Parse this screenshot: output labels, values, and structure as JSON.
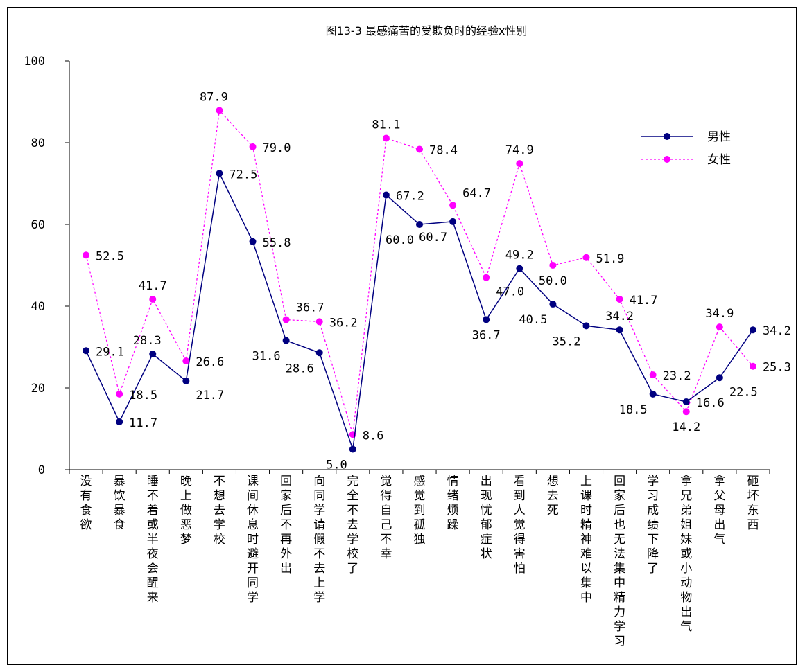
{
  "chart_data": {
    "type": "line",
    "title": "图13-3 最感痛苦的受欺负时的经验x性别",
    "xlabel": "",
    "ylabel": "",
    "ylim": [
      0,
      100
    ],
    "yticks": [
      0,
      20,
      40,
      60,
      80,
      100
    ],
    "grid": false,
    "legend_position": "top-right",
    "categories": [
      "没有食欲",
      "暴饮暴食",
      "睡不着或半夜会醒来",
      "晚上做恶梦",
      "不想去学校",
      "课间休息时避开同学",
      "回家后不再外出",
      "向同学请假不去上学",
      "完全不去学校了",
      "觉得自己不幸",
      "感觉到孤独",
      "情绪烦躁",
      "出现忧郁症状",
      "看到人觉得害怕",
      "想去死",
      "上课时精神难以集中",
      "回家后也无法集中精力学习",
      "学习成绩下降了",
      "拿兄弟姐妹或小动物出气",
      "拿父母出气",
      "砸坏东西"
    ],
    "series": [
      {
        "name": "男性",
        "color": "#000080",
        "style": "solid",
        "marker": "circle",
        "values": [
          29.1,
          11.7,
          28.3,
          21.7,
          72.5,
          55.8,
          31.6,
          28.6,
          5.0,
          67.2,
          60.0,
          60.7,
          36.7,
          49.2,
          40.5,
          35.2,
          34.2,
          18.5,
          16.6,
          22.5,
          34.2
        ]
      },
      {
        "name": "女性",
        "color": "#ff00ff",
        "style": "dotted",
        "marker": "circle",
        "values": [
          52.5,
          18.5,
          41.7,
          26.6,
          87.9,
          79.0,
          36.7,
          36.2,
          8.6,
          81.1,
          78.4,
          64.7,
          47.0,
          74.9,
          50.0,
          51.9,
          41.7,
          23.2,
          14.2,
          34.9,
          25.3
        ]
      }
    ],
    "data_labels": [
      {
        "text": "52.5",
        "series": 1,
        "index": 0,
        "anchor": "right"
      },
      {
        "text": "29.1",
        "series": 0,
        "index": 0,
        "anchor": "right"
      },
      {
        "text": "18.5",
        "series": 1,
        "index": 1,
        "anchor": "right"
      },
      {
        "text": "11.7",
        "series": 0,
        "index": 1,
        "anchor": "right"
      },
      {
        "text": "41.7",
        "series": 1,
        "index": 2,
        "anchor": "above"
      },
      {
        "text": "28.3",
        "series": 0,
        "index": 2,
        "anchor": "above-left"
      },
      {
        "text": "26.6",
        "series": 1,
        "index": 3,
        "anchor": "right"
      },
      {
        "text": "21.7",
        "series": 0,
        "index": 3,
        "anchor": "below-right"
      },
      {
        "text": "87.9",
        "series": 1,
        "index": 4,
        "anchor": "above-left"
      },
      {
        "text": "72.5",
        "series": 0,
        "index": 4,
        "anchor": "right"
      },
      {
        "text": "79.0",
        "series": 1,
        "index": 5,
        "anchor": "right"
      },
      {
        "text": "55.8",
        "series": 0,
        "index": 5,
        "anchor": "right"
      },
      {
        "text": "36.7",
        "series": 1,
        "index": 6,
        "anchor": "above-right"
      },
      {
        "text": "31.6",
        "series": 0,
        "index": 6,
        "anchor": "below-left"
      },
      {
        "text": "36.2",
        "series": 1,
        "index": 7,
        "anchor": "right"
      },
      {
        "text": "28.6",
        "series": 0,
        "index": 7,
        "anchor": "below-left"
      },
      {
        "text": "8.6",
        "series": 1,
        "index": 8,
        "anchor": "right"
      },
      {
        "text": "5.0",
        "series": 0,
        "index": 8,
        "anchor": "below-left"
      },
      {
        "text": "81.1",
        "series": 1,
        "index": 9,
        "anchor": "above"
      },
      {
        "text": "67.2",
        "series": 0,
        "index": 9,
        "anchor": "right"
      },
      {
        "text": "78.4",
        "series": 1,
        "index": 10,
        "anchor": "right"
      },
      {
        "text": "60.0",
        "series": 0,
        "index": 10,
        "anchor": "below-left"
      },
      {
        "text": "64.7",
        "series": 1,
        "index": 11,
        "anchor": "above-right"
      },
      {
        "text": "60.7",
        "series": 0,
        "index": 11,
        "anchor": "below-left"
      },
      {
        "text": "47.0",
        "series": 1,
        "index": 12,
        "anchor": "below-right"
      },
      {
        "text": "36.7",
        "series": 0,
        "index": 12,
        "anchor": "below"
      },
      {
        "text": "74.9",
        "series": 1,
        "index": 13,
        "anchor": "above"
      },
      {
        "text": "49.2",
        "series": 0,
        "index": 13,
        "anchor": "above"
      },
      {
        "text": "50.0",
        "series": 1,
        "index": 14,
        "anchor": "below"
      },
      {
        "text": "40.5",
        "series": 0,
        "index": 14,
        "anchor": "below-left"
      },
      {
        "text": "51.9",
        "series": 1,
        "index": 15,
        "anchor": "right"
      },
      {
        "text": "35.2",
        "series": 0,
        "index": 15,
        "anchor": "below-left"
      },
      {
        "text": "41.7",
        "series": 1,
        "index": 16,
        "anchor": "right"
      },
      {
        "text": "34.2",
        "series": 0,
        "index": 16,
        "anchor": "above"
      },
      {
        "text": "23.2",
        "series": 1,
        "index": 17,
        "anchor": "right"
      },
      {
        "text": "18.5",
        "series": 0,
        "index": 17,
        "anchor": "below-left"
      },
      {
        "text": "14.2",
        "series": 1,
        "index": 18,
        "anchor": "below"
      },
      {
        "text": "16.6",
        "series": 0,
        "index": 18,
        "anchor": "right"
      },
      {
        "text": "34.9",
        "series": 1,
        "index": 19,
        "anchor": "above"
      },
      {
        "text": "22.5",
        "series": 0,
        "index": 19,
        "anchor": "below-right"
      },
      {
        "text": "34.2",
        "series": 0,
        "index": 20,
        "anchor": "right"
      },
      {
        "text": "25.3",
        "series": 1,
        "index": 20,
        "anchor": "right"
      }
    ]
  }
}
